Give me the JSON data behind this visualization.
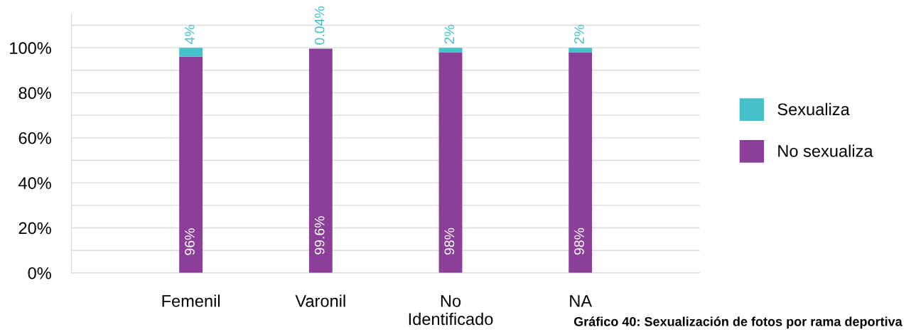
{
  "chart_data": {
    "type": "bar",
    "stacked": true,
    "categories": [
      "Femenil",
      "Varonil",
      "No\nIdentificado",
      "NA"
    ],
    "series": [
      {
        "name": "No sexualiza",
        "color": "#8b3f98",
        "values": [
          96,
          99.6,
          98,
          98
        ],
        "value_labels": [
          "96%",
          "99.6%",
          "98%",
          "98%"
        ]
      },
      {
        "name": "Sexualiza",
        "color": "#45c1c9",
        "values": [
          4,
          0.04,
          2,
          2
        ],
        "value_labels": [
          "4%",
          "0.04%",
          "2%",
          "2%"
        ]
      }
    ],
    "ylim": [
      0,
      115
    ],
    "yticks": [
      {
        "value": 0,
        "label": "0%"
      },
      {
        "value": 10,
        "label": null
      },
      {
        "value": 20,
        "label": "20%"
      },
      {
        "value": 30,
        "label": null
      },
      {
        "value": 40,
        "label": "40%"
      },
      {
        "value": 50,
        "label": null
      },
      {
        "value": 60,
        "label": "60%"
      },
      {
        "value": 70,
        "label": null
      },
      {
        "value": 80,
        "label": "80%"
      },
      {
        "value": 90,
        "label": null
      },
      {
        "value": 100,
        "label": "100%"
      },
      {
        "value": 110,
        "label": null
      }
    ],
    "grid": "y",
    "legend": "right",
    "annotations": [
      "Gráfico 40: Sexualización de fotos por rama deportiva"
    ]
  }
}
